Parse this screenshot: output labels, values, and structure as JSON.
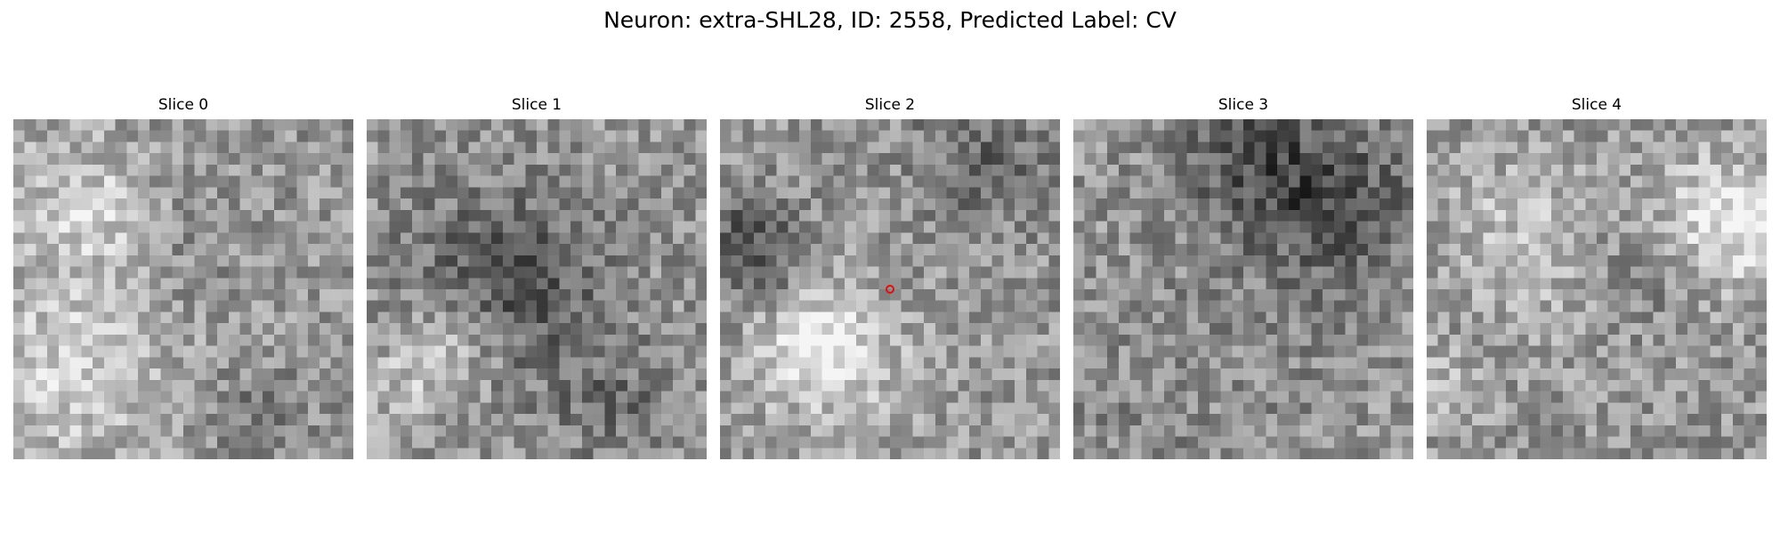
{
  "figure": {
    "title": "Neuron: extra-SHL28, ID: 2558, Predicted Label: CV"
  },
  "panels": [
    {
      "title": "Slice 0"
    },
    {
      "title": "Slice 1"
    },
    {
      "title": "Slice 2"
    },
    {
      "title": "Slice 3"
    },
    {
      "title": "Slice 4"
    }
  ],
  "colors": {
    "colormap": "grayscale",
    "marker": "#e01010"
  }
}
